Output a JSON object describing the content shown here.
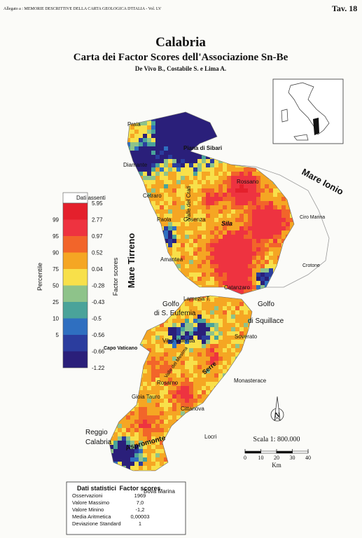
{
  "header": {
    "series_note": "Allegato a : MEMORIE DESCRITTIVE DELLA CARTA GEOLOGICA D'ITALIA - Vol. LV",
    "plate": "Tav. 18",
    "title": "Calabria",
    "subtitle": "Carta dei Factor Scores dell'Associazione Sn-Be",
    "authors": "De Vivo B., Costabile S. e Lima A."
  },
  "legend": {
    "missing": "Dati assenti",
    "percentile_title": "Percentile",
    "score_title": "Factor scores",
    "factor_scores": [
      5.95,
      2.77,
      0.97,
      0.52,
      0.04,
      -0.28,
      -0.43,
      -0.5,
      -0.56,
      -0.66,
      -1.22
    ],
    "percentiles": [
      99,
      95,
      90,
      75,
      50,
      25,
      10,
      5
    ],
    "colors": [
      "#e4202c",
      "#ee3340",
      "#f2652a",
      "#f5a623",
      "#f8e04a",
      "#8ec38a",
      "#4aa39a",
      "#2f6fc0",
      "#2b3d9e",
      "#2a1f7a"
    ]
  },
  "places": [
    "Praia",
    "Diamante",
    "Piana di Sibari",
    "Cetraro",
    "Valle del Crati",
    "Rossano",
    "Paola",
    "Cosenza",
    "Sila",
    "Ciro Marina",
    "Crotone",
    "Amantea",
    "Catanzaro",
    "Lamezia T.",
    "Mare Ionio",
    "Mare Tirreno",
    "Golfo",
    "di S. Eufemia",
    "Golfo",
    "di Squillace",
    "Soverato",
    "Vibo Valentia",
    "Capo Vaticano",
    "Valle del Mesima",
    "Serre",
    "Rosarno",
    "Gioia Tauro",
    "Cittanova",
    "Monasterace",
    "Locri",
    "Reggio",
    "Calabria",
    "Aspromonte",
    "Bova Marina"
  ],
  "scale": {
    "label": "Scala 1: 800.000",
    "ticks": [
      0,
      10,
      20,
      30,
      40
    ],
    "unit": "Km",
    "north": "N"
  },
  "stats": {
    "title": "Dati statistici",
    "column": "Factor scores",
    "rows": [
      [
        "Osservazioni",
        "1969"
      ],
      [
        "Valore Massimo",
        "7,0"
      ],
      [
        "Valore Minino",
        "-1,2"
      ],
      [
        "Media Aritmetica",
        "0,00003"
      ],
      [
        "Deviazione Standard",
        "1"
      ]
    ]
  }
}
